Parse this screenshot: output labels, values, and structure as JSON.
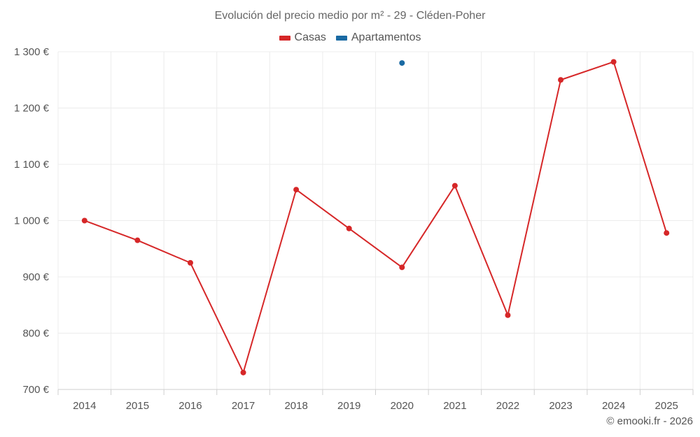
{
  "chart_data": {
    "type": "line",
    "title": "Evolución del precio medio por m² - 29 - Cléden-Poher",
    "categories": [
      "2014",
      "2015",
      "2016",
      "2017",
      "2018",
      "2019",
      "2020",
      "2021",
      "2022",
      "2023",
      "2024",
      "2025"
    ],
    "series": [
      {
        "name": "Casas",
        "color": "#d62728",
        "values": [
          1000,
          965,
          925,
          730,
          1055,
          986,
          917,
          1062,
          832,
          1250,
          1282,
          978
        ]
      },
      {
        "name": "Apartamentos",
        "color": "#1a6aa3",
        "values": [
          null,
          null,
          null,
          null,
          null,
          null,
          1280,
          null,
          null,
          null,
          null,
          null
        ]
      }
    ],
    "ylim": [
      700,
      1300
    ],
    "yticks": [
      700,
      800,
      900,
      1000,
      1100,
      1200,
      1300
    ],
    "ytick_labels": [
      "700 €",
      "800 €",
      "900 €",
      "1 000 €",
      "1 100 €",
      "1 200 €",
      "1 300 €"
    ],
    "xlabel": "",
    "ylabel": "",
    "grid": true,
    "legend_position": "top-center"
  },
  "credit": "© emooki.fr - 2026"
}
